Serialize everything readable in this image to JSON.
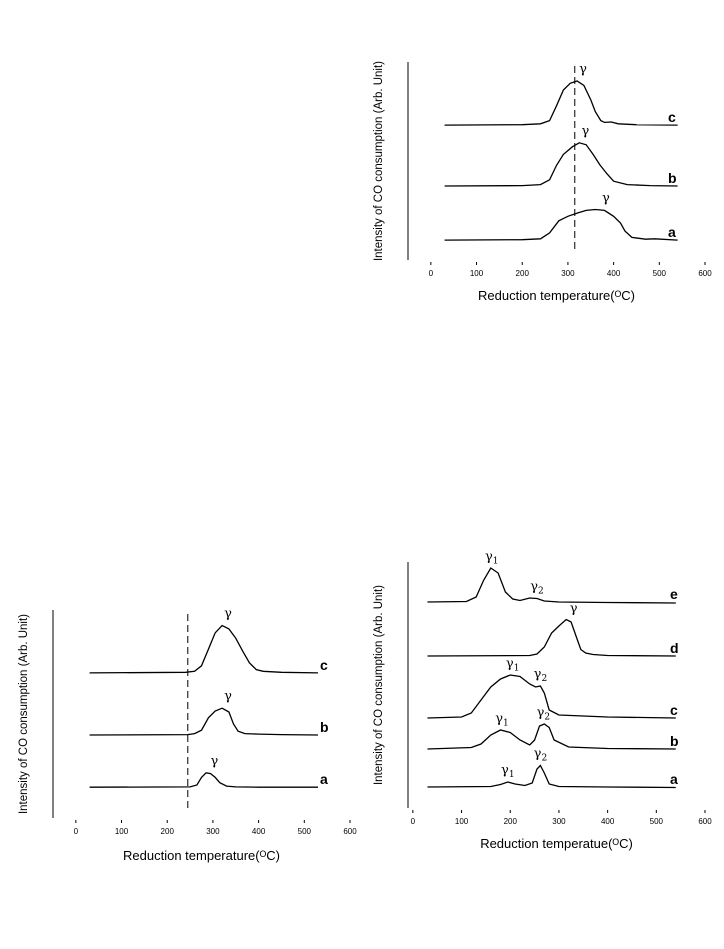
{
  "chart_data": [
    {
      "type": "line",
      "panel": "top-right",
      "xlabel": "Reduction temperature(ᴼC)",
      "ylabel": "Intensity of CO consumption (Arb. Unit)",
      "xlim": [
        -50,
        600
      ],
      "xticks": [
        0,
        100,
        200,
        300,
        400,
        500,
        600
      ],
      "dashed_line_x": 315,
      "series": [
        {
          "name": "c",
          "peak_label": "γ",
          "peak_x": 320,
          "x": [
            30,
            200,
            240,
            260,
            275,
            290,
            305,
            320,
            335,
            350,
            360,
            372,
            380,
            395,
            410,
            450,
            540
          ],
          "y": [
            0.02,
            0.03,
            0.05,
            0.12,
            0.45,
            0.8,
            0.95,
            1.0,
            0.9,
            0.58,
            0.32,
            0.12,
            0.08,
            0.09,
            0.05,
            0.03,
            0.02
          ]
        },
        {
          "name": "b",
          "peak_label": "γ",
          "peak_x": 325,
          "x": [
            30,
            200,
            240,
            260,
            275,
            290,
            310,
            325,
            340,
            355,
            370,
            385,
            400,
            430,
            480,
            540
          ],
          "y": [
            0.02,
            0.03,
            0.05,
            0.15,
            0.45,
            0.68,
            0.84,
            0.92,
            0.88,
            0.68,
            0.46,
            0.28,
            0.12,
            0.05,
            0.03,
            0.02
          ]
        },
        {
          "name": "a",
          "peak_label": "γ",
          "peak_x": 370,
          "x": [
            30,
            200,
            240,
            260,
            280,
            300,
            320,
            340,
            360,
            380,
            400,
            415,
            425,
            440,
            470,
            490,
            540
          ],
          "y": [
            0.02,
            0.03,
            0.05,
            0.18,
            0.45,
            0.55,
            0.62,
            0.68,
            0.7,
            0.68,
            0.55,
            0.4,
            0.22,
            0.08,
            0.04,
            0.05,
            0.02
          ]
        }
      ]
    },
    {
      "type": "line",
      "panel": "bottom-left",
      "xlabel": "Reduction temperature(ᴼC)",
      "ylabel": "Intensity of CO consumption (Arb. Unit)",
      "xlim": [
        -50,
        600
      ],
      "xticks": [
        0,
        100,
        200,
        300,
        400,
        500,
        600
      ],
      "dashed_line_x": 245,
      "series": [
        {
          "name": "c",
          "peak_label": "γ",
          "peak_x": 320,
          "x": [
            30,
            240,
            260,
            275,
            290,
            305,
            320,
            335,
            350,
            365,
            380,
            395,
            410,
            450,
            530
          ],
          "y": [
            0.02,
            0.03,
            0.05,
            0.15,
            0.45,
            0.75,
            0.88,
            0.82,
            0.65,
            0.42,
            0.2,
            0.08,
            0.05,
            0.03,
            0.02
          ]
        },
        {
          "name": "b",
          "peak_label": "γ",
          "peak_x": 320,
          "x": [
            30,
            245,
            260,
            275,
            290,
            305,
            320,
            335,
            345,
            355,
            370,
            400,
            450,
            530
          ],
          "y": [
            0.02,
            0.03,
            0.05,
            0.12,
            0.38,
            0.52,
            0.58,
            0.5,
            0.25,
            0.1,
            0.05,
            0.04,
            0.03,
            0.02
          ]
        },
        {
          "name": "a",
          "peak_label": "γ",
          "peak_x": 290,
          "x": [
            30,
            250,
            265,
            275,
            285,
            295,
            305,
            315,
            330,
            350,
            400,
            530
          ],
          "y": [
            0.02,
            0.03,
            0.08,
            0.28,
            0.4,
            0.38,
            0.28,
            0.14,
            0.05,
            0.03,
            0.02,
            0.02
          ]
        }
      ]
    },
    {
      "type": "line",
      "panel": "bottom-right",
      "xlabel": "Reduction temperatue(ᴼC)",
      "ylabel": "Intensity of CO consumption (Arb. Unit)",
      "xlim": [
        -10,
        600
      ],
      "xticks": [
        0,
        100,
        200,
        300,
        400,
        500,
        600
      ],
      "series": [
        {
          "name": "e",
          "peaks": [
            {
              "label": "γ",
              "sub": "1",
              "x": 162
            },
            {
              "label": "γ",
              "sub": "2",
              "x": 255
            }
          ],
          "x": [
            30,
            110,
            130,
            145,
            160,
            175,
            190,
            205,
            220,
            240,
            255,
            270,
            300,
            400,
            540
          ],
          "y": [
            0.02,
            0.03,
            0.12,
            0.45,
            0.7,
            0.6,
            0.22,
            0.08,
            0.05,
            0.1,
            0.09,
            0.04,
            0.02,
            0.01,
            0.0
          ]
        },
        {
          "name": "d",
          "peak_label": "γ",
          "peak_x": 318,
          "x": [
            30,
            240,
            255,
            270,
            285,
            300,
            315,
            325,
            335,
            345,
            355,
            370,
            400,
            540
          ],
          "y": [
            0.02,
            0.03,
            0.06,
            0.2,
            0.48,
            0.62,
            0.75,
            0.7,
            0.42,
            0.15,
            0.08,
            0.05,
            0.03,
            0.02
          ]
        },
        {
          "name": "c",
          "peaks": [
            {
              "label": "γ",
              "sub": "1",
              "x": 205
            },
            {
              "label": "γ",
              "sub": "2",
              "x": 262
            }
          ],
          "x": [
            30,
            100,
            120,
            140,
            160,
            180,
            200,
            220,
            240,
            252,
            262,
            270,
            280,
            300,
            400,
            540
          ],
          "y": [
            0.02,
            0.04,
            0.12,
            0.38,
            0.64,
            0.8,
            0.88,
            0.85,
            0.7,
            0.64,
            0.66,
            0.52,
            0.18,
            0.08,
            0.04,
            0.02
          ]
        },
        {
          "name": "b",
          "peaks": [
            {
              "label": "γ",
              "sub": "1",
              "x": 183
            },
            {
              "label": "γ",
              "sub": "2",
              "x": 268
            }
          ],
          "x": [
            30,
            120,
            140,
            160,
            180,
            200,
            220,
            240,
            250,
            260,
            270,
            280,
            290,
            320,
            400,
            540
          ],
          "y": [
            0.02,
            0.05,
            0.12,
            0.3,
            0.4,
            0.35,
            0.2,
            0.1,
            0.2,
            0.48,
            0.52,
            0.45,
            0.2,
            0.06,
            0.03,
            0.02
          ]
        },
        {
          "name": "a",
          "peaks": [
            {
              "label": "γ",
              "sub": "1",
              "x": 195
            },
            {
              "label": "γ",
              "sub": "2",
              "x": 262
            }
          ],
          "x": [
            30,
            160,
            180,
            195,
            210,
            230,
            245,
            255,
            262,
            270,
            280,
            300,
            400,
            540
          ],
          "y": [
            0.02,
            0.03,
            0.07,
            0.12,
            0.08,
            0.05,
            0.1,
            0.38,
            0.45,
            0.3,
            0.08,
            0.03,
            0.02,
            0.01
          ]
        }
      ]
    }
  ]
}
